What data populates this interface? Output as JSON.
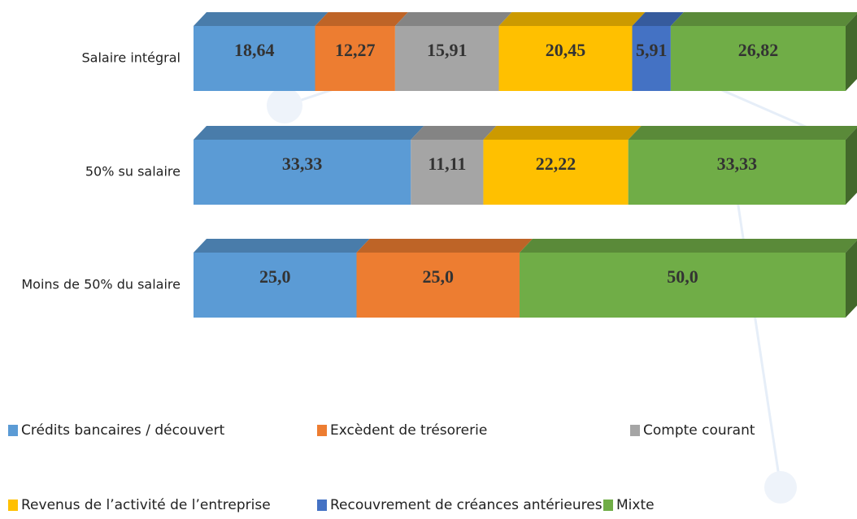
{
  "chart_data": {
    "type": "stacked-bar-horizontal-3d",
    "categories": [
      "Salaire intégral",
      "50% su salaire",
      "Moins de 50% du salaire"
    ],
    "series": [
      {
        "name": "Crédits bancaires / découvert",
        "color": "#5b9bd5",
        "values": [
          18.64,
          33.33,
          25.0
        ],
        "value_labels": [
          "18,64",
          "33,33",
          "25,0"
        ]
      },
      {
        "name": "Excèdent de trésorerie",
        "color": "#ed7d31",
        "values": [
          12.27,
          null,
          25.0
        ],
        "value_labels": [
          "12,27",
          null,
          "25,0"
        ]
      },
      {
        "name": "Compte courant",
        "color": "#a5a5a5",
        "values": [
          15.91,
          11.11,
          null
        ],
        "value_labels": [
          "15,91",
          "11,11",
          null
        ]
      },
      {
        "name": "Revenus de l’activité de l’entreprise",
        "color": "#ffc000",
        "values": [
          20.45,
          22.22,
          null
        ],
        "value_labels": [
          "20,45",
          "22,22",
          null
        ]
      },
      {
        "name": "Recouvrement de créances antérieures",
        "color": "#4472c4",
        "values": [
          5.91,
          null,
          null
        ],
        "value_labels": [
          "5,91",
          null,
          null
        ]
      },
      {
        "name": "Mixte",
        "color": "#70ad47",
        "values": [
          26.82,
          33.33,
          50.0
        ],
        "value_labels": [
          "26,82",
          "33,33",
          "50,0"
        ]
      }
    ]
  }
}
